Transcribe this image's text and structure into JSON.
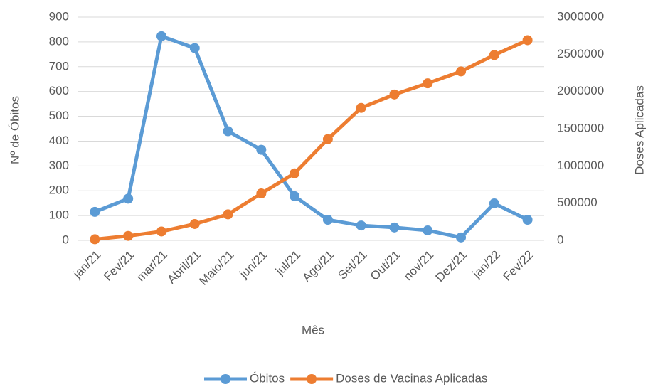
{
  "chart_data": {
    "type": "line",
    "x_label": "Mês",
    "y_label": "Nº de Óbitos",
    "y2_label": "Doses  Aplicadas",
    "categories": [
      "jan/21",
      "Fev/21",
      "mar/21",
      "Abril/21",
      "Maio/21",
      "jun/21",
      "jul/21",
      "Ago/21",
      "Set/21",
      "Out/21",
      "nov/21",
      "Dez/21",
      "jan/22",
      "Fev/22"
    ],
    "series": [
      {
        "name": "Óbitos",
        "color": "#5b9bd5",
        "values": [
          115,
          168,
          823,
          775,
          440,
          365,
          178,
          83,
          60,
          52,
          40,
          12,
          149,
          83
        ]
      },
      {
        "name": "Doses de Vacinas Aplicadas",
        "color": "#ed7d31",
        "axis": "y2",
        "values": [
          15000,
          60000,
          120000,
          220000,
          350000,
          630000,
          900000,
          1360000,
          1780000,
          1960000,
          2110000,
          2270000,
          2490000,
          2690000
        ]
      }
    ],
    "ylim": [
      0,
      900
    ],
    "yticks": [
      0,
      100,
      200,
      300,
      400,
      500,
      600,
      700,
      800,
      900
    ],
    "y2lim": [
      0,
      3000000
    ],
    "y2ticks": [
      0,
      500000,
      1000000,
      1500000,
      2000000,
      2500000,
      3000000
    ],
    "grid": true,
    "legend": "bottom"
  }
}
